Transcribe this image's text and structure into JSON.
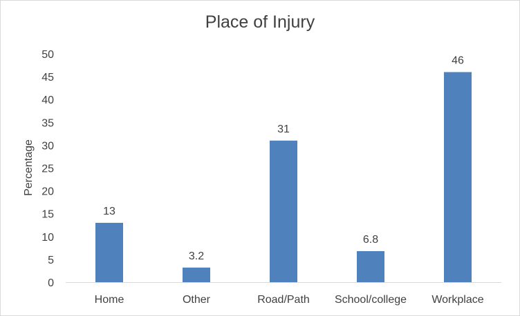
{
  "chart_data": {
    "type": "bar",
    "title": "Place of Injury",
    "xlabel": "",
    "ylabel": "Percentage",
    "categories": [
      "Home",
      "Other",
      "Road/Path",
      "School/college",
      "Workplace"
    ],
    "values": [
      13,
      3.2,
      31,
      6.8,
      46
    ],
    "data_labels": [
      "13",
      "3.2",
      "31",
      "6.8",
      "46"
    ],
    "ylim": [
      0,
      50
    ],
    "yticks": [
      "0",
      "5",
      "10",
      "15",
      "20",
      "25",
      "30",
      "35",
      "40",
      "45",
      "50"
    ],
    "grid": false,
    "legend": "none",
    "bar_color": "#4f81bd"
  }
}
